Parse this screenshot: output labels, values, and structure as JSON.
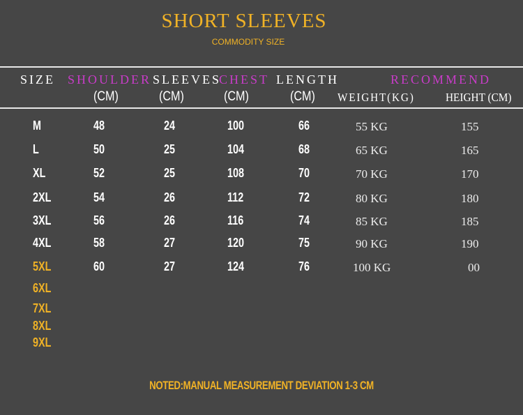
{
  "title": "SHORT SLEEVES",
  "subtitle": "COMMODITY SIZE",
  "headers": {
    "size": "SIZE",
    "shoulder": "SHOULDER",
    "sleeves": "SLEEVES",
    "chest": "CHEST",
    "length": "LENGTH",
    "recommend": "RECOMMEND",
    "unit_cm": "(CM)",
    "weight": "WEIGHT(KG)",
    "height": "HEIGHT (CM)"
  },
  "rows": [
    {
      "size": "M",
      "shoulder": "48",
      "sleeves": "24",
      "chest": "100",
      "length": "66",
      "weight": "55 KG",
      "height": "155"
    },
    {
      "size": "L",
      "shoulder": "50",
      "sleeves": "25",
      "chest": "104",
      "length": "68",
      "weight": "65 KG",
      "height": "165"
    },
    {
      "size": "XL",
      "shoulder": "52",
      "sleeves": "25",
      "chest": "108",
      "length": "70",
      "weight": "70 KG",
      "height": "170"
    },
    {
      "size": "2XL",
      "shoulder": "54",
      "sleeves": "26",
      "chest": "112",
      "length": "72",
      "weight": "80 KG",
      "height": "180"
    },
    {
      "size": "3XL",
      "shoulder": "56",
      "sleeves": "26",
      "chest": "116",
      "length": "74",
      "weight": "85 KG",
      "height": "185"
    },
    {
      "size": "4XL",
      "shoulder": "58",
      "sleeves": "27",
      "chest": "120",
      "length": "75",
      "weight": "90 KG",
      "height": "190"
    },
    {
      "size": "5XL",
      "shoulder": "60",
      "sleeves": "27",
      "chest": "124",
      "length": "76",
      "weight": "100 KG",
      "height": "00"
    }
  ],
  "extra_sizes": [
    "6XL",
    "7XL",
    "8XL",
    "9XL"
  ],
  "note": "NOTED:MANUAL MEASUREMENT DEVIATION 1-3 CM",
  "colors": {
    "background": "#464646",
    "gold": "#f0b226",
    "magenta": "#c83cc8"
  }
}
